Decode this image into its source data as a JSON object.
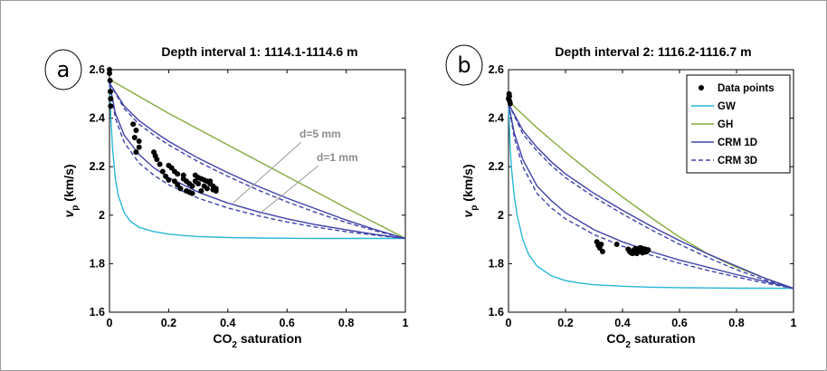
{
  "chart_data": [
    {
      "type": "line",
      "panel_label": "a",
      "title": "Depth interval 1: 1114.1-1114.6 m",
      "xlabel_base": "CO",
      "xlabel_sub": "2",
      "xlabel_rest": " saturation",
      "ylabel_base": "v",
      "ylabel_sub": "p",
      "ylabel_rest": " (km/s)",
      "xlim": [
        0,
        1
      ],
      "ylim": [
        1.6,
        2.6
      ],
      "xticks": [
        "0",
        "0.2",
        "0.4",
        "0.6",
        "0.8",
        "1"
      ],
      "yticks": [
        "1.6",
        "1.8",
        "2",
        "2.2",
        "2.4",
        "2.6"
      ],
      "annotations": [
        "d=5 mm",
        "d=1 mm"
      ],
      "series": [
        {
          "name": "GW",
          "style": "solid",
          "color": "#29b6d6",
          "x": [
            0,
            0.005,
            0.01,
            0.02,
            0.03,
            0.05,
            0.07,
            0.1,
            0.15,
            0.2,
            0.25,
            0.3,
            0.4,
            0.5,
            0.6,
            0.7,
            0.8,
            0.9,
            1
          ],
          "y": [
            2.545,
            2.4,
            2.28,
            2.15,
            2.08,
            2.01,
            1.975,
            1.95,
            1.932,
            1.922,
            1.916,
            1.912,
            1.908,
            1.906,
            1.905,
            1.904,
            1.904,
            1.904,
            1.904
          ]
        },
        {
          "name": "GH",
          "style": "solid",
          "color": "#86ab3f",
          "x": [
            0,
            0.1,
            0.2,
            0.3,
            0.4,
            0.5,
            0.6,
            0.7,
            0.8,
            0.9,
            1
          ],
          "y": [
            2.56,
            2.49,
            2.42,
            2.355,
            2.29,
            2.225,
            2.16,
            2.095,
            2.03,
            1.967,
            1.904
          ]
        },
        {
          "name": "CRM 1D",
          "style": "solid",
          "color": "#3f43a8",
          "x": [
            0,
            0.05,
            0.1,
            0.15,
            0.2,
            0.3,
            0.4,
            0.5,
            0.6,
            0.7,
            0.8,
            0.9,
            1
          ],
          "y": [
            2.545,
            2.45,
            2.39,
            2.345,
            2.305,
            2.235,
            2.175,
            2.12,
            2.07,
            2.025,
            1.98,
            1.94,
            1.904
          ]
        },
        {
          "name": "CRM 1D (d=1 mm)",
          "style": "solid",
          "color": "#3f43a8",
          "x": [
            0,
            0.02,
            0.05,
            0.1,
            0.15,
            0.2,
            0.3,
            0.4,
            0.5,
            0.6,
            0.7,
            0.8,
            0.9,
            1
          ],
          "y": [
            2.545,
            2.42,
            2.33,
            2.25,
            2.195,
            2.155,
            2.095,
            2.05,
            2.015,
            1.985,
            1.96,
            1.94,
            1.92,
            1.904
          ]
        },
        {
          "name": "CRM 3D",
          "style": "dashed",
          "color": "#3f43a8",
          "x": [
            0,
            0.05,
            0.1,
            0.15,
            0.2,
            0.3,
            0.4,
            0.5,
            0.6,
            0.7,
            0.8,
            0.9,
            1
          ],
          "y": [
            2.545,
            2.44,
            2.375,
            2.33,
            2.29,
            2.22,
            2.16,
            2.105,
            2.055,
            2.01,
            1.97,
            1.935,
            1.904
          ]
        },
        {
          "name": "CRM 3D (d=1 mm)",
          "style": "dashed",
          "color": "#3f43a8",
          "x": [
            0,
            0.02,
            0.05,
            0.1,
            0.15,
            0.2,
            0.3,
            0.4,
            0.5,
            0.6,
            0.7,
            0.8,
            0.9,
            1
          ],
          "y": [
            2.545,
            2.4,
            2.3,
            2.215,
            2.165,
            2.125,
            2.07,
            2.03,
            1.998,
            1.972,
            1.95,
            1.932,
            1.917,
            1.904
          ]
        },
        {
          "name": "Data points",
          "style": "scatter",
          "color": "#000000",
          "x": [
            0,
            0,
            0.002,
            0.003,
            0.004,
            0.004,
            0.08,
            0.09,
            0.085,
            0.1,
            0.1,
            0.09,
            0.15,
            0.155,
            0.16,
            0.17,
            0.2,
            0.21,
            0.22,
            0.23,
            0.25,
            0.25,
            0.26,
            0.27,
            0.28,
            0.24,
            0.26,
            0.28,
            0.27,
            0.29,
            0.3,
            0.31,
            0.32,
            0.33,
            0.34,
            0.35,
            0.36,
            0.29,
            0.3,
            0.32,
            0.33,
            0.35,
            0.36,
            0.31,
            0.34,
            0.18,
            0.19,
            0.2,
            0.22,
            0.23
          ],
          "y": [
            2.585,
            2.6,
            2.555,
            2.51,
            2.48,
            2.45,
            2.375,
            2.35,
            2.32,
            2.305,
            2.28,
            2.26,
            2.26,
            2.245,
            2.23,
            2.21,
            2.205,
            2.195,
            2.18,
            2.17,
            2.165,
            2.15,
            2.14,
            2.13,
            2.12,
            2.11,
            2.1,
            2.09,
            2.095,
            2.165,
            2.155,
            2.15,
            2.145,
            2.14,
            2.13,
            2.12,
            2.11,
            2.14,
            2.13,
            2.12,
            2.11,
            2.105,
            2.1,
            2.1,
            2.14,
            2.18,
            2.16,
            2.145,
            2.14,
            2.125
          ]
        }
      ]
    },
    {
      "type": "line",
      "panel_label": "b",
      "title": "Depth interval 2: 1116.2-1116.7 m",
      "xlabel_base": "CO",
      "xlabel_sub": "2",
      "xlabel_rest": " saturation",
      "ylabel_base": "v",
      "ylabel_sub": "p",
      "ylabel_rest": " (km/s)",
      "xlim": [
        0,
        1
      ],
      "ylim": [
        1.6,
        2.6
      ],
      "xticks": [
        "0",
        "0.2",
        "0.4",
        "0.6",
        "0.8",
        "1"
      ],
      "yticks": [
        "1.6",
        "1.8",
        "2",
        "2.2",
        "2.4",
        "2.6"
      ],
      "legend_position": "top-right",
      "legend": [
        {
          "label": "Data points",
          "style": "marker"
        },
        {
          "label": "GW",
          "style": "solid",
          "color": "#29b6d6"
        },
        {
          "label": "GH",
          "style": "solid",
          "color": "#86ab3f"
        },
        {
          "label": "CRM 1D",
          "style": "solid",
          "color": "#3f43a8"
        },
        {
          "label": "CRM 3D",
          "style": "dashed",
          "color": "#3f43a8"
        }
      ],
      "series": [
        {
          "name": "GW",
          "style": "solid",
          "color": "#29b6d6",
          "x": [
            0,
            0.005,
            0.01,
            0.02,
            0.03,
            0.05,
            0.07,
            0.1,
            0.15,
            0.2,
            0.25,
            0.3,
            0.4,
            0.5,
            0.6,
            0.7,
            0.8,
            0.9,
            1
          ],
          "y": [
            2.46,
            2.3,
            2.2,
            2.08,
            2.0,
            1.9,
            1.84,
            1.79,
            1.75,
            1.73,
            1.72,
            1.713,
            1.707,
            1.703,
            1.701,
            1.7,
            1.699,
            1.699,
            1.698
          ]
        },
        {
          "name": "GH",
          "style": "solid",
          "color": "#86ab3f",
          "x": [
            0,
            0.1,
            0.2,
            0.3,
            0.4,
            0.5,
            0.6,
            0.7,
            0.8,
            0.9,
            1
          ],
          "y": [
            2.47,
            2.36,
            2.26,
            2.165,
            2.075,
            1.99,
            1.91,
            1.84,
            1.785,
            1.74,
            1.698
          ]
        },
        {
          "name": "CRM 1D",
          "style": "solid",
          "color": "#3f43a8",
          "x": [
            0,
            0.05,
            0.1,
            0.15,
            0.2,
            0.3,
            0.4,
            0.5,
            0.6,
            0.7,
            0.8,
            0.9,
            1
          ],
          "y": [
            2.46,
            2.35,
            2.28,
            2.22,
            2.17,
            2.09,
            2.02,
            1.955,
            1.895,
            1.84,
            1.79,
            1.74,
            1.698
          ]
        },
        {
          "name": "CRM 1D (d=1 mm)",
          "style": "solid",
          "color": "#3f43a8",
          "x": [
            0,
            0.02,
            0.05,
            0.1,
            0.15,
            0.2,
            0.3,
            0.4,
            0.5,
            0.6,
            0.7,
            0.8,
            0.9,
            1
          ],
          "y": [
            2.46,
            2.34,
            2.23,
            2.12,
            2.06,
            2.01,
            1.94,
            1.89,
            1.85,
            1.815,
            1.785,
            1.755,
            1.727,
            1.698
          ]
        },
        {
          "name": "CRM 3D",
          "style": "dashed",
          "color": "#3f43a8",
          "x": [
            0,
            0.05,
            0.1,
            0.15,
            0.2,
            0.3,
            0.4,
            0.5,
            0.6,
            0.7,
            0.8,
            0.9,
            1
          ],
          "y": [
            2.46,
            2.335,
            2.265,
            2.205,
            2.155,
            2.075,
            2.005,
            1.94,
            1.88,
            1.825,
            1.775,
            1.733,
            1.698
          ]
        },
        {
          "name": "CRM 3D (d=1 mm)",
          "style": "dashed",
          "color": "#3f43a8",
          "x": [
            0,
            0.02,
            0.05,
            0.1,
            0.15,
            0.2,
            0.3,
            0.4,
            0.5,
            0.6,
            0.7,
            0.8,
            0.9,
            1
          ],
          "y": [
            2.46,
            2.32,
            2.2,
            2.09,
            2.03,
            1.985,
            1.92,
            1.872,
            1.835,
            1.802,
            1.772,
            1.745,
            1.72,
            1.698
          ]
        },
        {
          "name": "Data points",
          "style": "scatter",
          "color": "#000000",
          "x": [
            0,
            0.002,
            0.004,
            0.006,
            0.003,
            0.31,
            0.315,
            0.32,
            0.325,
            0.33,
            0.38,
            0.42,
            0.425,
            0.43,
            0.44,
            0.445,
            0.45,
            0.455,
            0.46,
            0.465,
            0.47,
            0.475,
            0.48,
            0.485,
            0.49,
            0.435,
            0.45,
            0.47,
            0.48,
            0.46
          ],
          "y": [
            2.48,
            2.5,
            2.47,
            2.46,
            2.49,
            1.89,
            1.875,
            1.865,
            1.88,
            1.85,
            1.88,
            1.86,
            1.85,
            1.845,
            1.855,
            1.862,
            1.848,
            1.858,
            1.852,
            1.865,
            1.845,
            1.855,
            1.86,
            1.85,
            1.857,
            1.842,
            1.842,
            1.862,
            1.848,
            1.865
          ]
        }
      ]
    }
  ]
}
